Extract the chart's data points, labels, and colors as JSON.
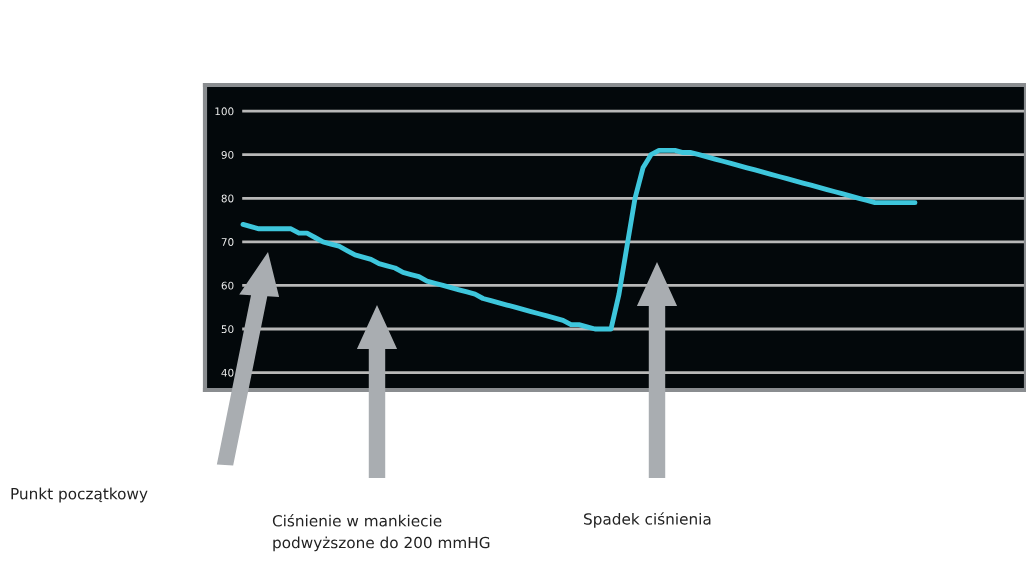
{
  "chart_data": {
    "type": "line",
    "categories": [
      null,
      null,
      null,
      null,
      null,
      null,
      null,
      null,
      null,
      null,
      null,
      null,
      null,
      null,
      null,
      null,
      null,
      null,
      null,
      null,
      null,
      null,
      null,
      null,
      null,
      null,
      null,
      null,
      null,
      null,
      null,
      null,
      null,
      null,
      null,
      null,
      null,
      null,
      null,
      null,
      null,
      null,
      null,
      null,
      null,
      null,
      null,
      null,
      null,
      null,
      null,
      null,
      null,
      null,
      null,
      null,
      null,
      null,
      null,
      null,
      null,
      null,
      null,
      null,
      null,
      null,
      null,
      null,
      null,
      null,
      null,
      null,
      null,
      null,
      null,
      null,
      null,
      null,
      null,
      null,
      null,
      null,
      null,
      null,
      null,
      null,
      null,
      null,
      null,
      null,
      null,
      null,
      null,
      null,
      null,
      null,
      null,
      null
    ],
    "series": [
      {
        "color": "#3ec6dc",
        "values": [
          74,
          73.5,
          73,
          73,
          73,
          73,
          73,
          72,
          72,
          71,
          70,
          69.5,
          69,
          68,
          67,
          66.5,
          66,
          65,
          64.5,
          64,
          63,
          62.5,
          62,
          61,
          60.5,
          60,
          59.5,
          59,
          58.5,
          58,
          57,
          56.5,
          56,
          55.5,
          55,
          54.5,
          54,
          53.5,
          53,
          52.5,
          52,
          51,
          51,
          50.5,
          50,
          50,
          50,
          58,
          69,
          80,
          87,
          90,
          91,
          91,
          91,
          90.5,
          90.5,
          90,
          89.5,
          89,
          88.5,
          88,
          87.5,
          87,
          86.5,
          86,
          85.5,
          85,
          84.5,
          84,
          83.5,
          83,
          82.5,
          82,
          81.5,
          81,
          80.5,
          80,
          79.5,
          79,
          79,
          79,
          79,
          79,
          79,
          null,
          null,
          null,
          null,
          null,
          null,
          null,
          null,
          null,
          null,
          null,
          null,
          null
        ]
      }
    ],
    "ylim": [
      36,
      106
    ],
    "yticks": [
      40,
      50,
      60,
      70,
      80,
      90,
      100
    ],
    "grid": "y",
    "tick_labels": "y",
    "marker": "none",
    "line_style": "solid",
    "annotations": [
      "Punkt początkowy",
      "Ciśnienie w mankiecie\npodwyższone do 200 mmHG",
      "Spadek ciśnienia"
    ]
  }
}
